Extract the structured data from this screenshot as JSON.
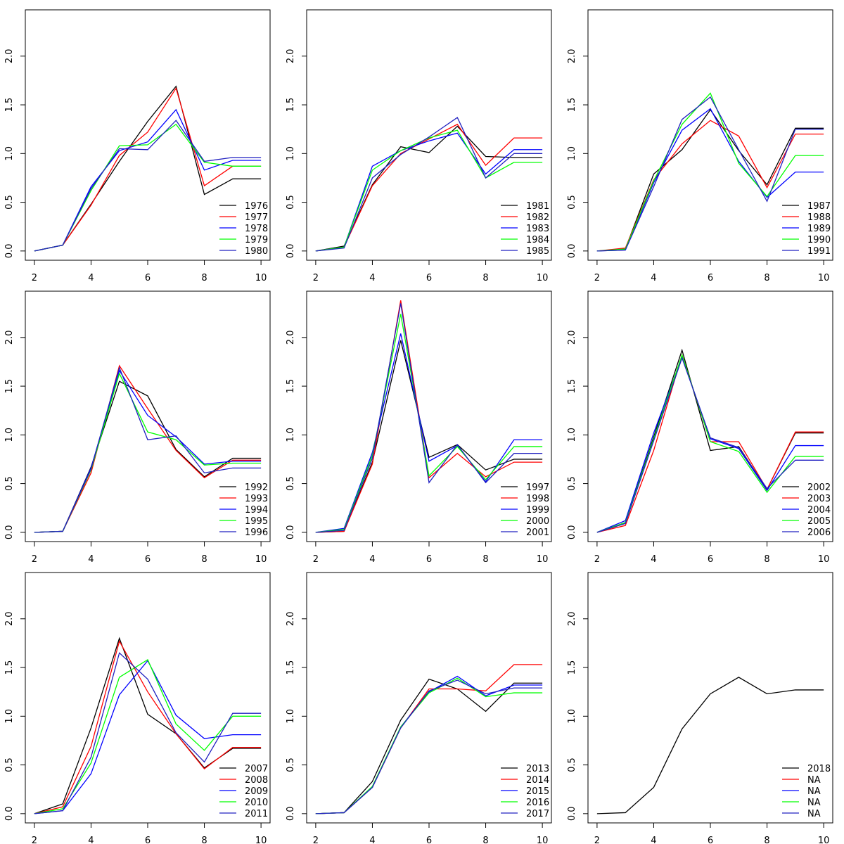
{
  "chart_data": [
    {
      "type": "line",
      "x": [
        2,
        3,
        4,
        5,
        6,
        7,
        8,
        9,
        10
      ],
      "xlim": [
        1.68,
        10.32
      ],
      "xticks": [
        2,
        4,
        6,
        8,
        10
      ],
      "ylim": [
        -0.095,
        2.475
      ],
      "yticks": [
        {
          "value": 0,
          "label": "0.0"
        },
        {
          "value": 0.5,
          "label": "0.5"
        },
        {
          "value": 1,
          "label": "1.0"
        },
        {
          "value": 1.5,
          "label": "1.5"
        },
        {
          "value": 2,
          "label": "2.0"
        }
      ],
      "legend": "bottomright",
      "series": [
        {
          "name": "1976",
          "color": "#000000",
          "values": [
            0,
            0.06,
            0.48,
            0.92,
            1.33,
            1.69,
            0.58,
            0.74,
            0.74
          ]
        },
        {
          "name": "1977",
          "color": "#FF0000",
          "values": [
            0,
            0.06,
            0.47,
            0.98,
            1.22,
            1.67,
            0.67,
            0.87,
            0.87
          ]
        },
        {
          "name": "1978",
          "color": "#0000FF",
          "values": [
            0,
            0.06,
            0.66,
            1.03,
            1.12,
            1.45,
            0.83,
            0.93,
            0.93
          ]
        },
        {
          "name": "1979",
          "color": "#00FF00",
          "values": [
            0,
            0.06,
            0.62,
            1.08,
            1.09,
            1.3,
            0.91,
            0.87,
            0.87
          ]
        },
        {
          "name": "1980",
          "color": "#2020C0",
          "values": [
            0,
            0.06,
            0.64,
            1.05,
            1.04,
            1.34,
            0.92,
            0.96,
            0.96
          ]
        }
      ]
    },
    {
      "type": "line",
      "x": [
        2,
        3,
        4,
        5,
        6,
        7,
        8,
        9,
        10
      ],
      "xlim": [
        1.68,
        10.32
      ],
      "xticks": [
        2,
        4,
        6,
        8,
        10
      ],
      "ylim": [
        -0.095,
        2.475
      ],
      "yticks": [
        {
          "value": 0,
          "label": "0.0"
        },
        {
          "value": 0.5,
          "label": "0.5"
        },
        {
          "value": 1,
          "label": "1.0"
        },
        {
          "value": 1.5,
          "label": "1.5"
        },
        {
          "value": 2,
          "label": "2.0"
        }
      ],
      "legend": "bottomright",
      "series": [
        {
          "name": "1981",
          "color": "#000000",
          "values": [
            0,
            0.05,
            0.68,
            1.07,
            1.01,
            1.28,
            0.97,
            0.96,
            0.96
          ]
        },
        {
          "name": "1982",
          "color": "#FF0000",
          "values": [
            0,
            0.04,
            0.67,
            1.0,
            1.15,
            1.3,
            0.88,
            1.16,
            1.16
          ]
        },
        {
          "name": "1983",
          "color": "#0000FF",
          "values": [
            0,
            0.04,
            0.87,
            1.03,
            1.13,
            1.21,
            0.79,
            1.04,
            1.04
          ]
        },
        {
          "name": "1984",
          "color": "#00FF00",
          "values": [
            0,
            0.04,
            0.83,
            1.03,
            1.16,
            1.24,
            0.75,
            0.91,
            0.91
          ]
        },
        {
          "name": "1985",
          "color": "#2020C0",
          "values": [
            0,
            0.03,
            0.75,
            0.99,
            1.17,
            1.37,
            0.75,
            1.0,
            1.0
          ]
        }
      ]
    },
    {
      "type": "line",
      "x": [
        2,
        3,
        4,
        5,
        6,
        7,
        8,
        9,
        10
      ],
      "xlim": [
        1.68,
        10.32
      ],
      "xticks": [
        2,
        4,
        6,
        8,
        10
      ],
      "ylim": [
        -0.095,
        2.475
      ],
      "yticks": [
        {
          "value": 0,
          "label": "0.0"
        },
        {
          "value": 0.5,
          "label": "0.5"
        },
        {
          "value": 1,
          "label": "1.0"
        },
        {
          "value": 1.5,
          "label": "1.5"
        },
        {
          "value": 2,
          "label": "2.0"
        }
      ],
      "legend": "bottomright",
      "series": [
        {
          "name": "1987",
          "color": "#000000",
          "values": [
            0,
            0.02,
            0.79,
            1.04,
            1.45,
            1.03,
            0.68,
            1.26,
            1.26
          ]
        },
        {
          "name": "1988",
          "color": "#FF0000",
          "values": [
            0,
            0.03,
            0.73,
            1.1,
            1.34,
            1.18,
            0.65,
            1.2,
            1.2
          ]
        },
        {
          "name": "1989",
          "color": "#0000FF",
          "values": [
            0,
            0.01,
            0.7,
            1.24,
            1.46,
            0.92,
            0.55,
            0.81,
            0.81
          ]
        },
        {
          "name": "1990",
          "color": "#00FF00",
          "values": [
            0,
            0.02,
            0.72,
            1.3,
            1.62,
            0.9,
            0.56,
            0.98,
            0.98
          ]
        },
        {
          "name": "1991",
          "color": "#2020C0",
          "values": [
            0,
            0.01,
            0.66,
            1.35,
            1.58,
            1.04,
            0.51,
            1.25,
            1.25
          ]
        }
      ]
    },
    {
      "type": "line",
      "x": [
        2,
        3,
        4,
        5,
        6,
        7,
        8,
        9,
        10
      ],
      "xlim": [
        1.68,
        10.32
      ],
      "xticks": [
        2,
        4,
        6,
        8,
        10
      ],
      "ylim": [
        -0.095,
        2.475
      ],
      "yticks": [
        {
          "value": 0,
          "label": "0.0"
        },
        {
          "value": 0.5,
          "label": "0.5"
        },
        {
          "value": 1,
          "label": "1.0"
        },
        {
          "value": 1.5,
          "label": "1.5"
        },
        {
          "value": 2,
          "label": "2.0"
        }
      ],
      "legend": "bottomright",
      "series": [
        {
          "name": "1992",
          "color": "#000000",
          "values": [
            0,
            0.01,
            0.67,
            1.55,
            1.4,
            0.85,
            0.57,
            0.76,
            0.76
          ]
        },
        {
          "name": "1993",
          "color": "#FF0000",
          "values": [
            0,
            0.01,
            0.61,
            1.71,
            1.27,
            0.84,
            0.56,
            0.74,
            0.74
          ]
        },
        {
          "name": "1994",
          "color": "#0000FF",
          "values": [
            0,
            0.01,
            0.66,
            1.66,
            1.2,
            0.98,
            0.7,
            0.73,
            0.73
          ]
        },
        {
          "name": "1995",
          "color": "#00FF00",
          "values": [
            0,
            0.01,
            0.64,
            1.63,
            1.03,
            0.95,
            0.69,
            0.71,
            0.71
          ]
        },
        {
          "name": "1996",
          "color": "#2020C0",
          "values": [
            0,
            0.01,
            0.65,
            1.69,
            0.95,
            0.99,
            0.61,
            0.66,
            0.66
          ]
        }
      ]
    },
    {
      "type": "line",
      "x": [
        2,
        3,
        4,
        5,
        6,
        7,
        8,
        9,
        10
      ],
      "xlim": [
        1.68,
        10.32
      ],
      "xticks": [
        2,
        4,
        6,
        8,
        10
      ],
      "ylim": [
        -0.095,
        2.475
      ],
      "yticks": [
        {
          "value": 0,
          "label": "0.0"
        },
        {
          "value": 0.5,
          "label": "0.5"
        },
        {
          "value": 1,
          "label": "1.0"
        },
        {
          "value": 1.5,
          "label": "1.5"
        },
        {
          "value": 2,
          "label": "2.0"
        }
      ],
      "legend": "bottomright",
      "series": [
        {
          "name": "1997",
          "color": "#000000",
          "values": [
            0,
            0.01,
            0.72,
            1.97,
            0.77,
            0.9,
            0.64,
            0.75,
            0.75
          ]
        },
        {
          "name": "1998",
          "color": "#FF0000",
          "values": [
            0,
            0.01,
            0.7,
            2.38,
            0.56,
            0.81,
            0.57,
            0.72,
            0.72
          ]
        },
        {
          "name": "1999",
          "color": "#0000FF",
          "values": [
            0,
            0.04,
            0.82,
            2.04,
            0.73,
            0.89,
            0.52,
            0.95,
            0.95
          ]
        },
        {
          "name": "2000",
          "color": "#00FF00",
          "values": [
            0,
            0.03,
            0.79,
            2.24,
            0.58,
            0.88,
            0.54,
            0.88,
            0.88
          ]
        },
        {
          "name": "2001",
          "color": "#2020C0",
          "values": [
            0,
            0.02,
            0.76,
            2.35,
            0.51,
            0.9,
            0.51,
            0.81,
            0.81
          ]
        }
      ]
    },
    {
      "type": "line",
      "x": [
        2,
        3,
        4,
        5,
        6,
        7,
        8,
        9,
        10
      ],
      "xlim": [
        1.68,
        10.32
      ],
      "xticks": [
        2,
        4,
        6,
        8,
        10
      ],
      "ylim": [
        -0.095,
        2.475
      ],
      "yticks": [
        {
          "value": 0,
          "label": "0.0"
        },
        {
          "value": 0.5,
          "label": "0.5"
        },
        {
          "value": 1,
          "label": "1.0"
        },
        {
          "value": 1.5,
          "label": "1.5"
        },
        {
          "value": 2,
          "label": "2.0"
        }
      ],
      "legend": "bottomright",
      "series": [
        {
          "name": "2002",
          "color": "#000000",
          "values": [
            0,
            0.1,
            0.98,
            1.87,
            0.84,
            0.88,
            0.44,
            1.02,
            1.02
          ]
        },
        {
          "name": "2003",
          "color": "#FF0000",
          "values": [
            0,
            0.07,
            0.84,
            1.82,
            0.93,
            0.93,
            0.44,
            1.03,
            1.03
          ]
        },
        {
          "name": "2004",
          "color": "#0000FF",
          "values": [
            0,
            0.12,
            1.02,
            1.8,
            0.96,
            0.86,
            0.43,
            0.89,
            0.89
          ]
        },
        {
          "name": "2005",
          "color": "#00FF00",
          "values": [
            0,
            0.1,
            0.96,
            1.82,
            0.93,
            0.83,
            0.41,
            0.78,
            0.78
          ]
        },
        {
          "name": "2006",
          "color": "#2020C0",
          "values": [
            0,
            0.09,
            0.94,
            1.79,
            0.97,
            0.87,
            0.45,
            0.74,
            0.74
          ]
        }
      ]
    },
    {
      "type": "line",
      "x": [
        2,
        3,
        4,
        5,
        6,
        7,
        8,
        9,
        10
      ],
      "xlim": [
        1.68,
        10.32
      ],
      "xticks": [
        2,
        4,
        6,
        8,
        10
      ],
      "ylim": [
        -0.095,
        2.475
      ],
      "yticks": [
        {
          "value": 0,
          "label": "0.0"
        },
        {
          "value": 0.5,
          "label": "0.5"
        },
        {
          "value": 1,
          "label": "1.0"
        },
        {
          "value": 1.5,
          "label": "1.5"
        },
        {
          "value": 2,
          "label": "2.0"
        }
      ],
      "legend": "bottomright",
      "series": [
        {
          "name": "2007",
          "color": "#000000",
          "values": [
            0,
            0.1,
            0.88,
            1.8,
            1.02,
            0.82,
            0.47,
            0.67,
            0.67
          ]
        },
        {
          "name": "2008",
          "color": "#FF0000",
          "values": [
            0,
            0.07,
            0.69,
            1.77,
            1.25,
            0.82,
            0.46,
            0.68,
            0.68
          ]
        },
        {
          "name": "2009",
          "color": "#0000FF",
          "values": [
            0,
            0.03,
            0.41,
            1.22,
            1.57,
            1.01,
            0.77,
            0.81,
            0.81
          ]
        },
        {
          "name": "2010",
          "color": "#00FF00",
          "values": [
            0,
            0.05,
            0.52,
            1.4,
            1.58,
            0.92,
            0.65,
            1.0,
            1.0
          ]
        },
        {
          "name": "2011",
          "color": "#2020C0",
          "values": [
            0,
            0.03,
            0.58,
            1.65,
            1.38,
            0.83,
            0.53,
            1.03,
            1.03
          ]
        }
      ]
    },
    {
      "type": "line",
      "x": [
        2,
        3,
        4,
        5,
        6,
        7,
        8,
        9,
        10
      ],
      "xlim": [
        1.68,
        10.32
      ],
      "xticks": [
        2,
        4,
        6,
        8,
        10
      ],
      "ylim": [
        -0.095,
        2.475
      ],
      "yticks": [
        {
          "value": 0,
          "label": "0.0"
        },
        {
          "value": 0.5,
          "label": "0.5"
        },
        {
          "value": 1,
          "label": "1.0"
        },
        {
          "value": 1.5,
          "label": "1.5"
        },
        {
          "value": 2,
          "label": "2.0"
        }
      ],
      "legend": "bottomright",
      "series": [
        {
          "name": "2013",
          "color": "#000000",
          "values": [
            0,
            0.01,
            0.33,
            0.96,
            1.38,
            1.28,
            1.05,
            1.34,
            1.34
          ]
        },
        {
          "name": "2014",
          "color": "#FF0000",
          "values": [
            0,
            0.01,
            0.27,
            0.88,
            1.28,
            1.28,
            1.26,
            1.53,
            1.53
          ]
        },
        {
          "name": "2015",
          "color": "#0000FF",
          "values": [
            0,
            0.01,
            0.27,
            0.89,
            1.25,
            1.41,
            1.21,
            1.32,
            1.32
          ]
        },
        {
          "name": "2016",
          "color": "#00FF00",
          "values": [
            0,
            0.01,
            0.28,
            0.89,
            1.24,
            1.39,
            1.2,
            1.24,
            1.24
          ]
        },
        {
          "name": "2017",
          "color": "#2020C0",
          "values": [
            0,
            0.01,
            0.27,
            0.88,
            1.26,
            1.37,
            1.23,
            1.29,
            1.29
          ]
        }
      ]
    },
    {
      "type": "line",
      "x": [
        2,
        3,
        4,
        5,
        6,
        7,
        8,
        9,
        10
      ],
      "xlim": [
        1.68,
        10.32
      ],
      "xticks": [
        2,
        4,
        6,
        8,
        10
      ],
      "ylim": [
        -0.095,
        2.475
      ],
      "yticks": [
        {
          "value": 0,
          "label": "0.0"
        },
        {
          "value": 0.5,
          "label": "0.5"
        },
        {
          "value": 1,
          "label": "1.0"
        },
        {
          "value": 1.5,
          "label": "1.5"
        },
        {
          "value": 2,
          "label": "2.0"
        }
      ],
      "legend": "bottomright",
      "series": [
        {
          "name": "2018",
          "color": "#000000",
          "values": [
            0,
            0.01,
            0.27,
            0.87,
            1.23,
            1.4,
            1.23,
            1.27,
            1.27
          ]
        },
        {
          "name": "NA",
          "color": "#FF0000",
          "values": [
            null,
            null,
            null,
            null,
            null,
            null,
            null,
            null,
            null
          ]
        },
        {
          "name": "NA",
          "color": "#0000FF",
          "values": [
            null,
            null,
            null,
            null,
            null,
            null,
            null,
            null,
            null
          ]
        },
        {
          "name": "NA",
          "color": "#00FF00",
          "values": [
            null,
            null,
            null,
            null,
            null,
            null,
            null,
            null,
            null
          ]
        },
        {
          "name": "NA",
          "color": "#2020C0",
          "values": [
            null,
            null,
            null,
            null,
            null,
            null,
            null,
            null,
            null
          ]
        }
      ]
    }
  ]
}
